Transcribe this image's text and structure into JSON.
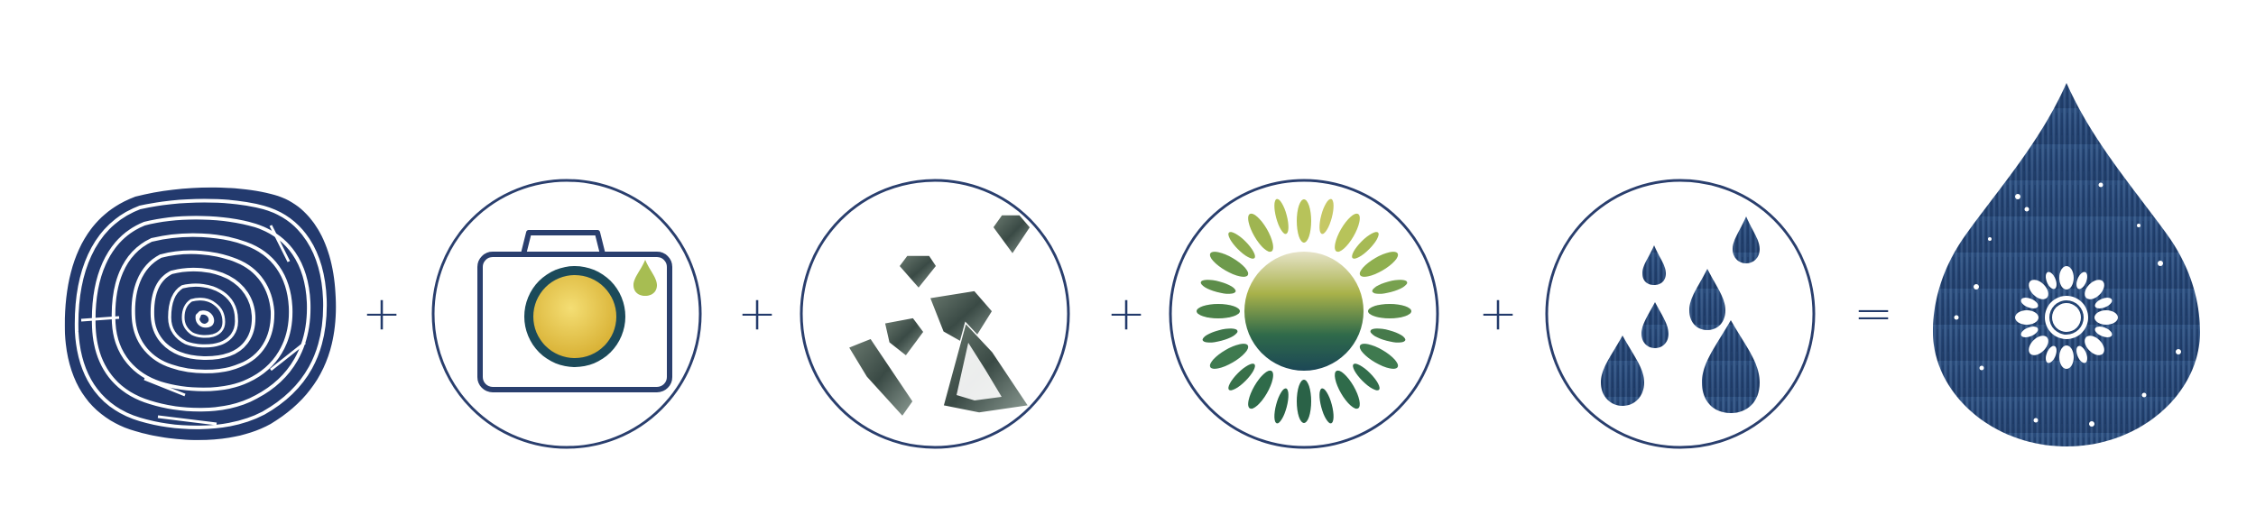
{
  "colors": {
    "navy": "#223a6b",
    "ring_blue": "#1f3d78",
    "gold": "#e8c544",
    "teal": "#1c4a5a",
    "leaf_green": "#2f6b4a",
    "leaf_lime": "#b7c35a",
    "water_dark": "#2b4a78",
    "water_light": "#6f8db5"
  },
  "operators": {
    "plus_1": "+",
    "plus_2": "+",
    "plus_3": "+",
    "plus_4": "+",
    "equals": "="
  },
  "icons": [
    "tree-rings-icon",
    "camera-icon",
    "gems-icon",
    "sun-icon",
    "water-drops-icon",
    "water-drop-sun-icon"
  ]
}
